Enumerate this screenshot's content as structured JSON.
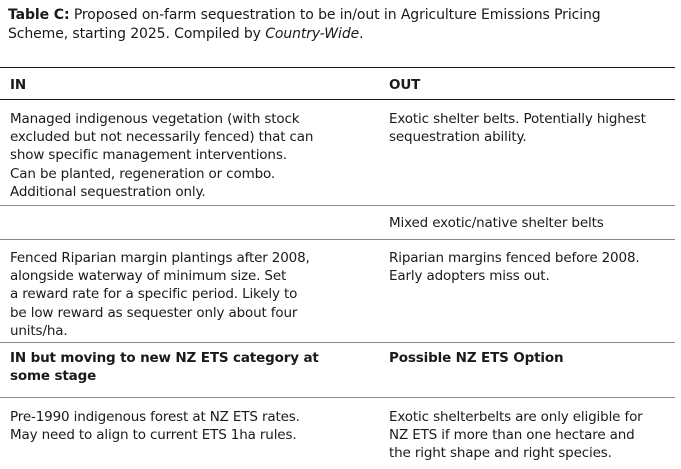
{
  "caption": {
    "label": "Table C:",
    "line1_text": " Proposed on-farm sequestration to be in/out in Agriculture Emissions Pricing",
    "line2_text": "Scheme, starting 2025. Compiled by ",
    "line2_italic": "Country-Wide",
    "line2_end": "."
  },
  "table": {
    "header": {
      "in": "IN",
      "out": "OUT"
    },
    "rows": [
      {
        "left": [
          "Managed indigenous vegetation (with stock",
          "excluded but not necessarily fenced) that can",
          "show specific management interventions.",
          "Can be planted, regeneration or combo.",
          "Additional sequestration only."
        ],
        "right": [
          "Exotic shelter belts. Potentially highest",
          "sequestration ability."
        ]
      },
      {
        "left": [],
        "right": [
          "Mixed exotic/native shelter belts"
        ]
      },
      {
        "left": [
          "Fenced Riparian margin plantings after 2008,",
          "alongside waterway of minimum size. Set",
          "a reward rate for a specific period. Likely to",
          "be low reward as sequester only about four",
          "units/ha."
        ],
        "right": [
          "Riparian margins fenced before 2008.",
          "Early adopters miss out."
        ]
      }
    ],
    "subheader": {
      "left": [
        "IN but moving to new NZ ETS category at",
        "some stage"
      ],
      "right": [
        "Possible NZ ETS Option"
      ]
    },
    "last_row": {
      "left": [
        "Pre-1990 indigenous forest at NZ ETS rates.",
        "May need to align to current ETS 1ha rules."
      ],
      "right": [
        "Exotic shelterbelts are only eligible for",
        "NZ ETS if more than one hectare and",
        "the right shape and right species."
      ]
    }
  }
}
